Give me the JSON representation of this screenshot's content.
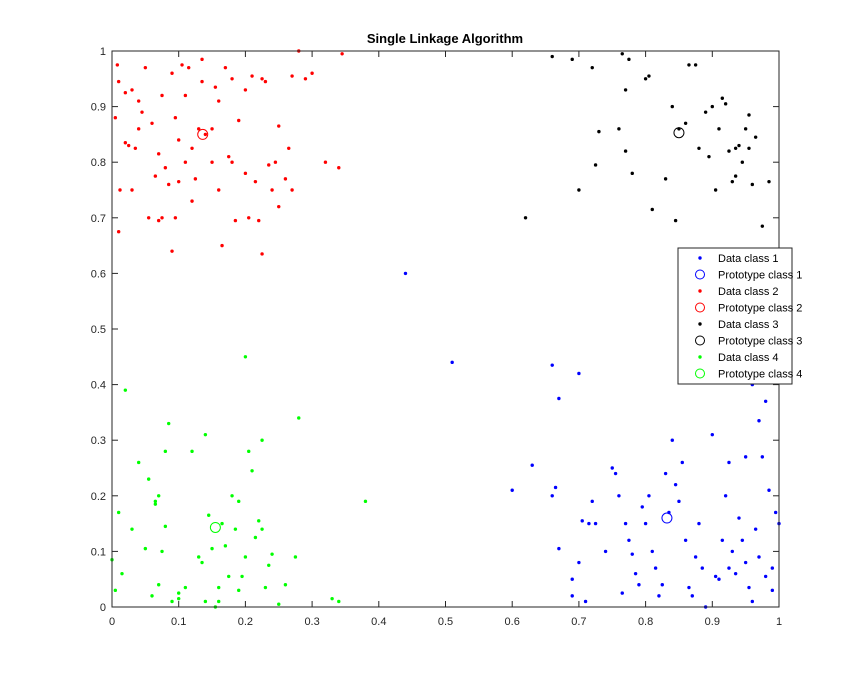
{
  "chart_data": {
    "type": "scatter",
    "title": "Single Linkage Algorithm",
    "xlabel": "",
    "ylabel": "",
    "xlim": [
      0,
      1
    ],
    "ylim": [
      0,
      1
    ],
    "x_ticks": [
      "0",
      "0.1",
      "0.2",
      "0.3",
      "0.4",
      "0.5",
      "0.6",
      "0.7",
      "0.8",
      "0.9",
      "1"
    ],
    "y_ticks": [
      "0",
      "0.1",
      "0.2",
      "0.3",
      "0.4",
      "0.5",
      "0.6",
      "0.7",
      "0.8",
      "0.9",
      "1"
    ],
    "grid": false,
    "legend_position": "right",
    "series": [
      {
        "name": "Data class 1",
        "kind": "points",
        "color": "#0000ff",
        "points": [
          [
            0.44,
            0.6
          ],
          [
            0.51,
            0.44
          ],
          [
            0.66,
            0.435
          ],
          [
            0.7,
            0.42
          ],
          [
            0.67,
            0.375
          ],
          [
            0.6,
            0.21
          ],
          [
            0.63,
            0.255
          ],
          [
            0.66,
            0.2
          ],
          [
            0.665,
            0.215
          ],
          [
            0.67,
            0.105
          ],
          [
            0.69,
            0.05
          ],
          [
            0.69,
            0.02
          ],
          [
            0.7,
            0.08
          ],
          [
            0.705,
            0.155
          ],
          [
            0.71,
            0.01
          ],
          [
            0.715,
            0.15
          ],
          [
            0.72,
            0.19
          ],
          [
            0.725,
            0.15
          ],
          [
            0.74,
            0.1
          ],
          [
            0.75,
            0.25
          ],
          [
            0.755,
            0.24
          ],
          [
            0.76,
            0.2
          ],
          [
            0.765,
            0.025
          ],
          [
            0.77,
            0.15
          ],
          [
            0.775,
            0.12
          ],
          [
            0.78,
            0.095
          ],
          [
            0.785,
            0.06
          ],
          [
            0.79,
            0.04
          ],
          [
            0.795,
            0.18
          ],
          [
            0.8,
            0.15
          ],
          [
            0.805,
            0.2
          ],
          [
            0.81,
            0.1
          ],
          [
            0.815,
            0.07
          ],
          [
            0.82,
            0.02
          ],
          [
            0.825,
            0.04
          ],
          [
            0.83,
            0.24
          ],
          [
            0.835,
            0.17
          ],
          [
            0.84,
            0.3
          ],
          [
            0.845,
            0.22
          ],
          [
            0.85,
            0.19
          ],
          [
            0.855,
            0.26
          ],
          [
            0.86,
            0.12
          ],
          [
            0.865,
            0.035
          ],
          [
            0.87,
            0.02
          ],
          [
            0.875,
            0.09
          ],
          [
            0.88,
            0.15
          ],
          [
            0.885,
            0.07
          ],
          [
            0.89,
            0.0
          ],
          [
            0.9,
            0.31
          ],
          [
            0.905,
            0.055
          ],
          [
            0.91,
            0.05
          ],
          [
            0.915,
            0.12
          ],
          [
            0.92,
            0.2
          ],
          [
            0.925,
            0.26
          ],
          [
            0.93,
            0.1
          ],
          [
            0.935,
            0.06
          ],
          [
            0.94,
            0.16
          ],
          [
            0.945,
            0.12
          ],
          [
            0.95,
            0.27
          ],
          [
            0.955,
            0.035
          ],
          [
            0.96,
            0.4
          ],
          [
            0.965,
            0.14
          ],
          [
            0.97,
            0.335
          ],
          [
            0.975,
            0.27
          ],
          [
            0.98,
            0.37
          ],
          [
            0.985,
            0.21
          ],
          [
            0.99,
            0.07
          ],
          [
            0.995,
            0.17
          ],
          [
            1.0,
            0.15
          ],
          [
            0.97,
            0.09
          ],
          [
            0.98,
            0.055
          ],
          [
            0.95,
            0.08
          ],
          [
            0.925,
            0.07
          ],
          [
            0.99,
            0.03
          ],
          [
            0.96,
            0.01
          ]
        ]
      },
      {
        "name": "Prototype class 1",
        "kind": "circle",
        "color": "#0000ff",
        "points": [
          [
            0.832,
            0.16
          ]
        ]
      },
      {
        "name": "Data class 2",
        "kind": "points",
        "color": "#ff0000",
        "points": [
          [
            0.005,
            0.88
          ],
          [
            0.008,
            0.975
          ],
          [
            0.01,
            0.945
          ],
          [
            0.012,
            0.75
          ],
          [
            0.01,
            0.675
          ],
          [
            0.02,
            0.835
          ],
          [
            0.02,
            0.925
          ],
          [
            0.025,
            0.83
          ],
          [
            0.03,
            0.93
          ],
          [
            0.03,
            0.75
          ],
          [
            0.04,
            0.91
          ],
          [
            0.04,
            0.86
          ],
          [
            0.045,
            0.89
          ],
          [
            0.05,
            0.97
          ],
          [
            0.06,
            0.87
          ],
          [
            0.065,
            0.775
          ],
          [
            0.07,
            0.815
          ],
          [
            0.07,
            0.695
          ],
          [
            0.075,
            0.7
          ],
          [
            0.08,
            0.79
          ],
          [
            0.085,
            0.76
          ],
          [
            0.09,
            0.96
          ],
          [
            0.09,
            0.64
          ],
          [
            0.095,
            0.88
          ],
          [
            0.1,
            0.84
          ],
          [
            0.1,
            0.765
          ],
          [
            0.105,
            0.975
          ],
          [
            0.11,
            0.92
          ],
          [
            0.11,
            0.8
          ],
          [
            0.115,
            0.97
          ],
          [
            0.12,
            0.73
          ],
          [
            0.12,
            0.825
          ],
          [
            0.125,
            0.77
          ],
          [
            0.13,
            0.86
          ],
          [
            0.135,
            0.945
          ],
          [
            0.14,
            0.85
          ],
          [
            0.15,
            0.86
          ],
          [
            0.155,
            0.935
          ],
          [
            0.16,
            0.75
          ],
          [
            0.165,
            0.65
          ],
          [
            0.17,
            0.97
          ],
          [
            0.175,
            0.81
          ],
          [
            0.18,
            0.95
          ],
          [
            0.185,
            0.695
          ],
          [
            0.19,
            0.875
          ],
          [
            0.2,
            0.78
          ],
          [
            0.205,
            0.7
          ],
          [
            0.21,
            0.955
          ],
          [
            0.215,
            0.765
          ],
          [
            0.22,
            0.695
          ],
          [
            0.225,
            0.95
          ],
          [
            0.225,
            0.635
          ],
          [
            0.23,
            0.945
          ],
          [
            0.235,
            0.795
          ],
          [
            0.24,
            0.75
          ],
          [
            0.245,
            0.8
          ],
          [
            0.25,
            0.72
          ],
          [
            0.25,
            0.865
          ],
          [
            0.26,
            0.77
          ],
          [
            0.265,
            0.825
          ],
          [
            0.27,
            0.75
          ],
          [
            0.28,
            1.0
          ],
          [
            0.29,
            0.95
          ],
          [
            0.3,
            0.96
          ],
          [
            0.32,
            0.8
          ],
          [
            0.34,
            0.79
          ],
          [
            0.345,
            0.995
          ],
          [
            0.27,
            0.955
          ],
          [
            0.18,
            0.8
          ],
          [
            0.055,
            0.7
          ],
          [
            0.16,
            0.91
          ],
          [
            0.2,
            0.93
          ],
          [
            0.135,
            0.985
          ],
          [
            0.075,
            0.92
          ],
          [
            0.15,
            0.8
          ],
          [
            0.035,
            0.825
          ],
          [
            0.095,
            0.7
          ]
        ]
      },
      {
        "name": "Prototype class 2",
        "kind": "circle",
        "color": "#ff0000",
        "points": [
          [
            0.136,
            0.85
          ]
        ]
      },
      {
        "name": "Data class 3",
        "kind": "points",
        "color": "#000000",
        "points": [
          [
            0.62,
            0.7
          ],
          [
            0.66,
            0.99
          ],
          [
            0.69,
            0.985
          ],
          [
            0.7,
            0.75
          ],
          [
            0.72,
            0.97
          ],
          [
            0.725,
            0.795
          ],
          [
            0.73,
            0.855
          ],
          [
            0.76,
            0.86
          ],
          [
            0.765,
            0.995
          ],
          [
            0.77,
            0.93
          ],
          [
            0.77,
            0.82
          ],
          [
            0.775,
            0.985
          ],
          [
            0.78,
            0.78
          ],
          [
            0.8,
            0.95
          ],
          [
            0.805,
            0.955
          ],
          [
            0.81,
            0.715
          ],
          [
            0.83,
            0.77
          ],
          [
            0.84,
            0.9
          ],
          [
            0.845,
            0.695
          ],
          [
            0.86,
            0.87
          ],
          [
            0.865,
            0.975
          ],
          [
            0.875,
            0.975
          ],
          [
            0.88,
            0.825
          ],
          [
            0.89,
            0.89
          ],
          [
            0.895,
            0.81
          ],
          [
            0.9,
            0.9
          ],
          [
            0.905,
            0.75
          ],
          [
            0.91,
            0.86
          ],
          [
            0.915,
            0.915
          ],
          [
            0.92,
            0.905
          ],
          [
            0.925,
            0.82
          ],
          [
            0.93,
            0.765
          ],
          [
            0.935,
            0.825
          ],
          [
            0.94,
            0.83
          ],
          [
            0.945,
            0.8
          ],
          [
            0.95,
            0.86
          ],
          [
            0.955,
            0.885
          ],
          [
            0.96,
            0.76
          ],
          [
            0.965,
            0.845
          ],
          [
            0.975,
            0.685
          ],
          [
            0.985,
            0.765
          ],
          [
            0.97,
            0.64
          ],
          [
            0.955,
            0.825
          ],
          [
            0.935,
            0.775
          ],
          [
            0.85,
            0.86
          ]
        ]
      },
      {
        "name": "Prototype class 3",
        "kind": "circle",
        "color": "#000000",
        "points": [
          [
            0.85,
            0.853
          ]
        ]
      },
      {
        "name": "Data class 4",
        "kind": "points",
        "color": "#00ff00",
        "points": [
          [
            0.0,
            0.085
          ],
          [
            0.005,
            0.03
          ],
          [
            0.01,
            0.17
          ],
          [
            0.015,
            0.06
          ],
          [
            0.02,
            0.39
          ],
          [
            0.03,
            0.14
          ],
          [
            0.04,
            0.26
          ],
          [
            0.05,
            0.105
          ],
          [
            0.055,
            0.23
          ],
          [
            0.06,
            0.02
          ],
          [
            0.065,
            0.19
          ],
          [
            0.07,
            0.2
          ],
          [
            0.07,
            0.04
          ],
          [
            0.075,
            0.1
          ],
          [
            0.08,
            0.145
          ],
          [
            0.08,
            0.28
          ],
          [
            0.085,
            0.33
          ],
          [
            0.09,
            0.01
          ],
          [
            0.1,
            0.025
          ],
          [
            0.11,
            0.035
          ],
          [
            0.12,
            0.28
          ],
          [
            0.13,
            0.09
          ],
          [
            0.135,
            0.08
          ],
          [
            0.14,
            0.01
          ],
          [
            0.145,
            0.165
          ],
          [
            0.15,
            0.105
          ],
          [
            0.155,
            0.0
          ],
          [
            0.16,
            0.035
          ],
          [
            0.165,
            0.15
          ],
          [
            0.17,
            0.11
          ],
          [
            0.175,
            0.055
          ],
          [
            0.18,
            0.2
          ],
          [
            0.185,
            0.14
          ],
          [
            0.19,
            0.19
          ],
          [
            0.195,
            0.055
          ],
          [
            0.2,
            0.45
          ],
          [
            0.205,
            0.28
          ],
          [
            0.21,
            0.245
          ],
          [
            0.215,
            0.125
          ],
          [
            0.22,
            0.155
          ],
          [
            0.225,
            0.3
          ],
          [
            0.23,
            0.035
          ],
          [
            0.235,
            0.075
          ],
          [
            0.24,
            0.095
          ],
          [
            0.25,
            0.005
          ],
          [
            0.26,
            0.04
          ],
          [
            0.275,
            0.09
          ],
          [
            0.28,
            0.34
          ],
          [
            0.33,
            0.015
          ],
          [
            0.34,
            0.01
          ],
          [
            0.38,
            0.19
          ],
          [
            0.1,
            0.015
          ],
          [
            0.16,
            0.01
          ],
          [
            0.2,
            0.09
          ],
          [
            0.225,
            0.14
          ],
          [
            0.14,
            0.31
          ],
          [
            0.19,
            0.03
          ],
          [
            0.065,
            0.185
          ]
        ]
      },
      {
        "name": "Prototype class 4",
        "kind": "circle",
        "color": "#00ff00",
        "points": [
          [
            0.155,
            0.143
          ]
        ]
      }
    ]
  }
}
